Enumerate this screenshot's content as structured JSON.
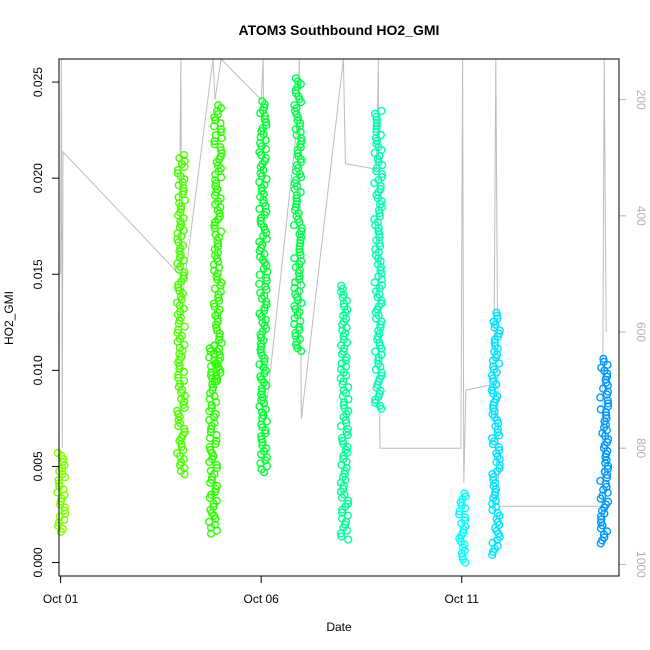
{
  "chart_data": {
    "type": "scatter",
    "title": "ATOM3 Southbound HO2_GMI",
    "xlabel": "Date",
    "ylabel": "HO2_GMI",
    "x_ticks": [
      "Oct 01",
      "Oct 06",
      "Oct 11"
    ],
    "x_tick_days": [
      1,
      6,
      11
    ],
    "xlim_days": [
      0.96,
      14.92
    ],
    "ylim": [
      -0.0007,
      0.0262
    ],
    "y_ticks": [
      0.0,
      0.005,
      0.01,
      0.015,
      0.02,
      0.025
    ],
    "y_tick_labels": [
      "0.000",
      "0.005",
      "0.010",
      "0.015",
      "0.020",
      "0.025"
    ],
    "y2_label": "",
    "y2_ticks": [
      200,
      400,
      600,
      800,
      1000
    ],
    "y2_tick_labels": [
      "200",
      "400",
      "600",
      "800",
      "1000"
    ],
    "y2lim_reversed": [
      1020,
      130
    ],
    "grid": false,
    "colors": {
      "axis": "#000000",
      "secondary_axis": "#b3b3b3",
      "pressure_trace": "#bebebe"
    },
    "series": [
      {
        "day": 1.02,
        "y_min": 0.0016,
        "y_max": 0.0057,
        "color": "#7fff00"
      },
      {
        "day": 4.0,
        "y_min": 0.0046,
        "y_max": 0.0212,
        "color": "#4cff00"
      },
      {
        "day": 4.8,
        "y_min": 0.0015,
        "y_max": 0.0113,
        "color": "#2cff00"
      },
      {
        "day": 4.92,
        "y_min": 0.0094,
        "y_max": 0.0238,
        "color": "#2cff00"
      },
      {
        "day": 6.05,
        "y_min": 0.0047,
        "y_max": 0.024,
        "color": "#00ff33"
      },
      {
        "day": 6.92,
        "y_min": 0.011,
        "y_max": 0.0252,
        "color": "#00ff4c"
      },
      {
        "day": 8.08,
        "y_min": 0.0012,
        "y_max": 0.0144,
        "color": "#00ff99"
      },
      {
        "day": 8.92,
        "y_min": 0.008,
        "y_max": 0.0235,
        "color": "#00ffb2"
      },
      {
        "day": 11.02,
        "y_min": 0.0,
        "y_max": 0.0036,
        "color": "#00ffff"
      },
      {
        "day": 11.85,
        "y_min": 0.0004,
        "y_max": 0.013,
        "color": "#00e5ff"
      },
      {
        "day": 14.55,
        "y_min": 0.001,
        "y_max": 0.0106,
        "color": "#0099ff"
      }
    ],
    "pressure_trace": [
      {
        "day": 1.0,
        "p": 500
      },
      {
        "day": 1.02,
        "p": 130
      },
      {
        "day": 1.04,
        "p": 800
      },
      {
        "day": 1.06,
        "p": 290
      },
      {
        "day": 3.95,
        "p": 500
      },
      {
        "day": 4.0,
        "p": 130
      },
      {
        "day": 4.02,
        "p": 550
      },
      {
        "day": 4.8,
        "p": 130
      },
      {
        "day": 4.85,
        "p": 200
      },
      {
        "day": 5.0,
        "p": 130
      },
      {
        "day": 6.0,
        "p": 200
      },
      {
        "day": 6.05,
        "p": 130
      },
      {
        "day": 6.1,
        "p": 750
      },
      {
        "day": 6.9,
        "p": 240
      },
      {
        "day": 6.95,
        "p": 130
      },
      {
        "day": 7.0,
        "p": 750
      },
      {
        "day": 8.05,
        "p": 130
      },
      {
        "day": 8.1,
        "p": 310
      },
      {
        "day": 8.88,
        "p": 320
      },
      {
        "day": 8.92,
        "p": 130
      },
      {
        "day": 8.96,
        "p": 800
      },
      {
        "day": 10.98,
        "p": 800
      },
      {
        "day": 11.02,
        "p": 130
      },
      {
        "day": 11.05,
        "p": 860
      },
      {
        "day": 11.1,
        "p": 700
      },
      {
        "day": 11.8,
        "p": 690
      },
      {
        "day": 11.85,
        "p": 130
      },
      {
        "day": 11.92,
        "p": 900
      },
      {
        "day": 14.5,
        "p": 900
      },
      {
        "day": 14.55,
        "p": 130
      },
      {
        "day": 14.6,
        "p": 600
      }
    ]
  }
}
